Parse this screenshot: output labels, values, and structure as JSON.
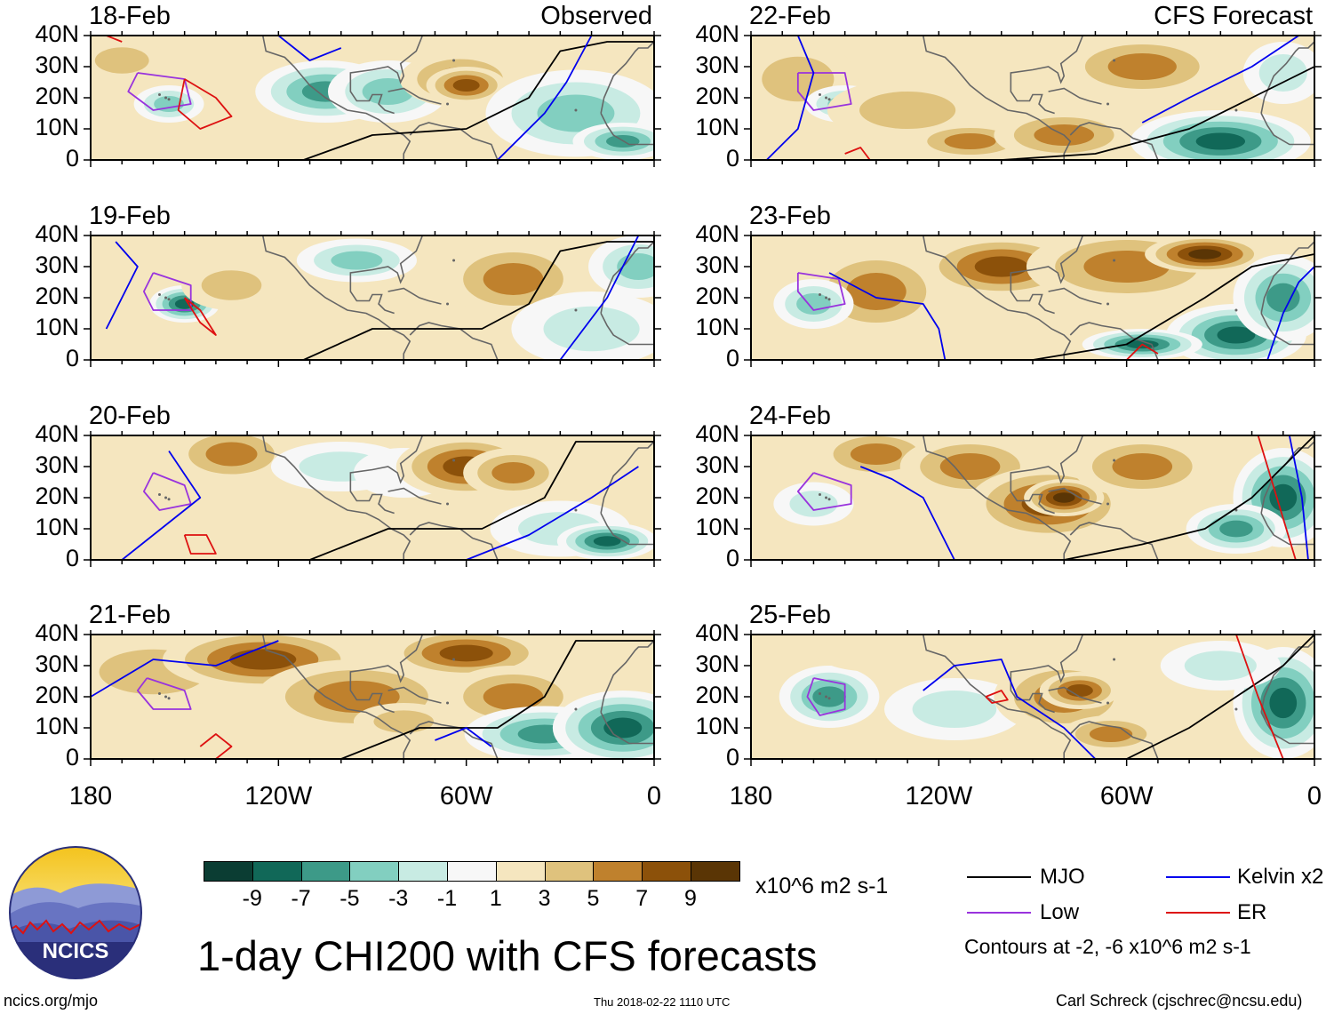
{
  "figure": {
    "title": "1-day CHI200 with CFS forecasts",
    "observed_label": "Observed",
    "forecast_label": "CFS Forecast"
  },
  "panels": [
    {
      "date": "18-Feb",
      "column": "observed"
    },
    {
      "date": "19-Feb",
      "column": "observed"
    },
    {
      "date": "20-Feb",
      "column": "observed"
    },
    {
      "date": "21-Feb",
      "column": "observed"
    },
    {
      "date": "22-Feb",
      "column": "forecast"
    },
    {
      "date": "23-Feb",
      "column": "forecast"
    },
    {
      "date": "24-Feb",
      "column": "forecast"
    },
    {
      "date": "25-Feb",
      "column": "forecast"
    }
  ],
  "axes": {
    "lat_labels": [
      "40N",
      "30N",
      "20N",
      "10N",
      "0"
    ],
    "lon_labels": [
      "180",
      "120W",
      "60W",
      "0"
    ]
  },
  "colorbar": {
    "labels": [
      "-9",
      "-7",
      "-5",
      "-3",
      "-1",
      "1",
      "3",
      "5",
      "7",
      "9"
    ],
    "colors": [
      "#0b3d33",
      "#116858",
      "#3d9a88",
      "#82cfc0",
      "#c8ebe3",
      "#f7f7f7",
      "#f5e6bf",
      "#dfc27d",
      "#bf812d",
      "#8c510a",
      "#5a3505"
    ],
    "units": "x10^6 m2 s-1"
  },
  "legend": {
    "items": [
      {
        "label": "MJO",
        "color": "#000000"
      },
      {
        "label": "Kelvin x2",
        "color": "#0000ee"
      },
      {
        "label": "Low",
        "color": "#9933dd"
      },
      {
        "label": "ER",
        "color": "#dd1111"
      }
    ],
    "contours_note": "Contours at -2, -6 x10^6 m2 s-1"
  },
  "logo": {
    "text": "NCICS"
  },
  "footer": {
    "website": "ncics.org/mjo",
    "timestamp": "Thu 2018-02-22 1110 UTC",
    "author": "Carl Schreck (cjschrec@ncsu.edu)"
  }
}
